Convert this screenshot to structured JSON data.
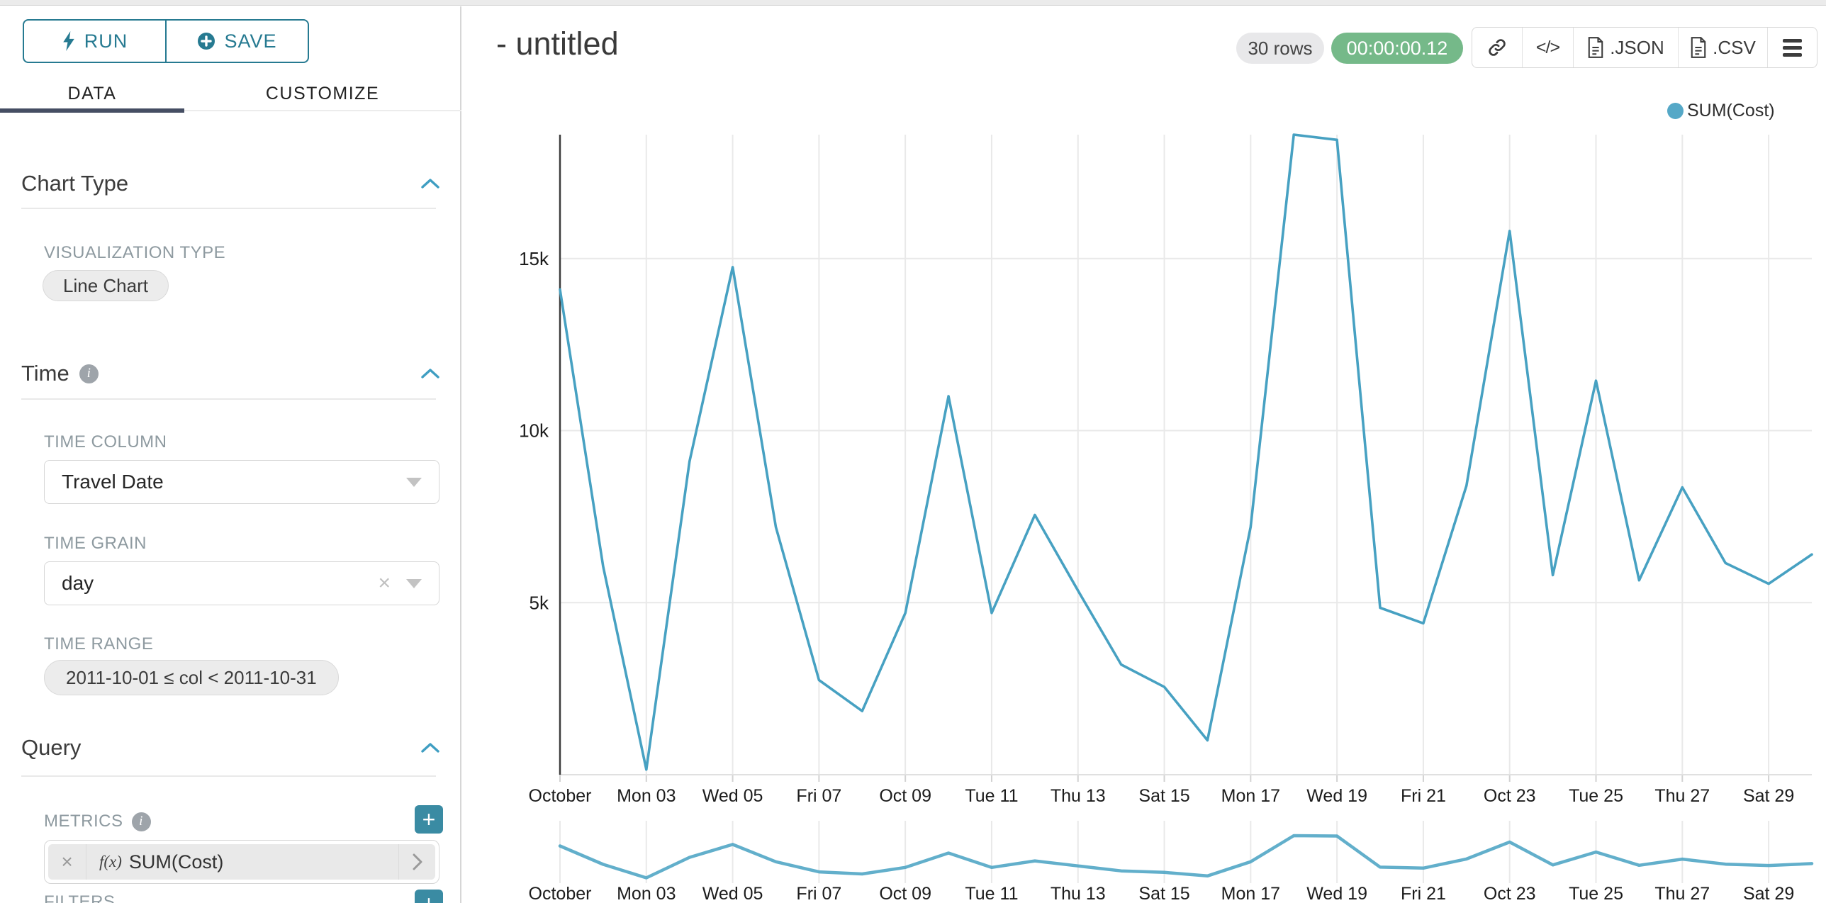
{
  "toolbar": {
    "run_label": "RUN",
    "save_label": "SAVE"
  },
  "tabs": {
    "data": "DATA",
    "customize": "CUSTOMIZE"
  },
  "sidebar": {
    "chart_type": {
      "title": "Chart Type",
      "viz_label": "VISUALIZATION TYPE",
      "viz_value": "Line Chart"
    },
    "time": {
      "title": "Time",
      "time_column_label": "TIME COLUMN",
      "time_column_value": "Travel Date",
      "time_grain_label": "TIME GRAIN",
      "time_grain_value": "day",
      "time_range_label": "TIME RANGE",
      "time_range_value": "2011-10-01 ≤ col < 2011-10-31"
    },
    "query": {
      "title": "Query",
      "metrics_label": "METRICS",
      "metric_fx": "f(x)",
      "metric_value": "SUM(Cost)",
      "filters_label": "FILTERS"
    }
  },
  "header": {
    "title": "- untitled",
    "rows_badge": "30 rows",
    "timer_badge": "00:00:00.12",
    "export_json_label": ".JSON",
    "export_csv_label": ".CSV",
    "code_glyph": "</>"
  },
  "colors": {
    "accent_teal": "#267a91",
    "series_line": "#47a1c2",
    "legend_dot": "#55a8c7",
    "grid": "#e9e9e9",
    "axis_dark": "#3c3c3c",
    "tick_text": "#1c1c1c",
    "badge_green": "#75b989"
  },
  "chart_data": {
    "type": "line",
    "title": "",
    "legend": [
      {
        "label": "SUM(Cost)",
        "color": "#55a8c7"
      }
    ],
    "xlabel": "",
    "ylabel": "",
    "x": [
      "Oct 01",
      "Oct 02",
      "Oct 03",
      "Oct 04",
      "Oct 05",
      "Oct 06",
      "Oct 07",
      "Oct 08",
      "Oct 09",
      "Oct 10",
      "Oct 11",
      "Oct 12",
      "Oct 13",
      "Oct 14",
      "Oct 15",
      "Oct 16",
      "Oct 17",
      "Oct 18",
      "Oct 19",
      "Oct 20",
      "Oct 21",
      "Oct 22",
      "Oct 23",
      "Oct 24",
      "Oct 25",
      "Oct 26",
      "Oct 27",
      "Oct 28",
      "Oct 29",
      "Oct 30"
    ],
    "series": [
      {
        "name": "SUM(Cost)",
        "values": [
          14100,
          6050,
          150,
          9100,
          14750,
          7200,
          2750,
          1850,
          4700,
          11000,
          4700,
          7550,
          5350,
          3200,
          2550,
          1000,
          7200,
          18600,
          18450,
          4850,
          4400,
          8400,
          15800,
          5800,
          11450,
          5650,
          8350,
          6150,
          5550,
          6400
        ]
      }
    ],
    "x_tick_labels": [
      "October",
      "Mon 03",
      "Wed 05",
      "Fri 07",
      "Oct 09",
      "Tue 11",
      "Thu 13",
      "Sat 15",
      "Mon 17",
      "Wed 19",
      "Fri 21",
      "Oct 23",
      "Tue 25",
      "Thu 27",
      "Sat 29"
    ],
    "y_ticks": [
      5000,
      10000,
      15000
    ],
    "y_tick_labels": [
      "5k",
      "10k",
      "15k"
    ],
    "ylim": [
      0,
      18600
    ],
    "grid": true,
    "legend_position": "top-right",
    "has_range_selector": true
  }
}
